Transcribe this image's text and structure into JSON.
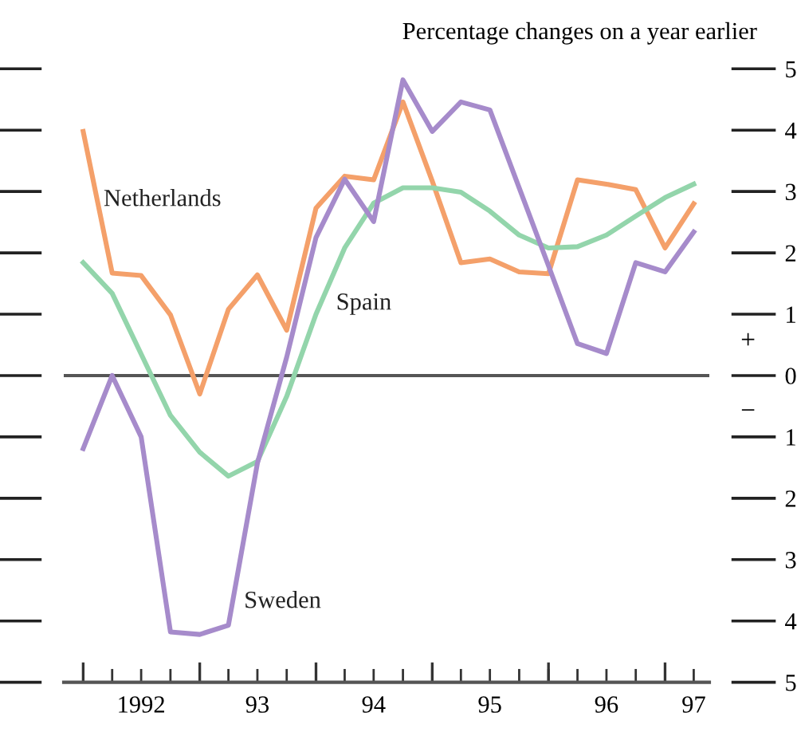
{
  "chart_data": {
    "type": "line",
    "ylabel": "Percentage changes on a year earlier",
    "x": [
      "1992-01",
      "1992-04",
      "1992-07",
      "1992-10",
      "1993-01",
      "1993-04",
      "1993-07",
      "1993-10",
      "1994-01",
      "1994-04",
      "1994-07",
      "1994-10",
      "1995-01",
      "1995-04",
      "1995-07",
      "1995-10",
      "1996-01",
      "1996-04",
      "1996-07",
      "1996-10",
      "1997-01",
      "1997-04"
    ],
    "series": [
      {
        "name": "Netherlands",
        "color": "#f4a06a",
        "values": [
          3.98,
          1.67,
          1.63,
          0.99,
          -0.3,
          1.08,
          1.64,
          0.74,
          2.73,
          3.25,
          3.19,
          4.46,
          3.17,
          1.84,
          1.9,
          1.69,
          1.66,
          3.19,
          3.12,
          3.03,
          2.08,
          2.8
        ]
      },
      {
        "name": "Spain",
        "color": "#93d5ab",
        "values": [
          1.84,
          1.34,
          0.35,
          -0.65,
          -1.25,
          -1.64,
          -1.4,
          -0.34,
          1.0,
          2.08,
          2.81,
          3.06,
          3.06,
          2.99,
          2.68,
          2.29,
          2.08,
          2.1,
          2.29,
          2.6,
          2.9,
          3.12
        ]
      },
      {
        "name": "Sweden",
        "color": "#a68bcb",
        "values": [
          -1.19,
          0.0,
          -1.0,
          -4.18,
          -4.22,
          -4.07,
          -1.43,
          0.3,
          2.25,
          3.2,
          2.51,
          4.82,
          3.98,
          4.46,
          4.33,
          3.06,
          1.79,
          0.52,
          0.36,
          1.84,
          1.69,
          2.34
        ]
      }
    ],
    "xlim": [
      "1991-11-01",
      "1997-05-20"
    ],
    "xticks": [
      {
        "value": "1992-07",
        "label": "1992"
      },
      {
        "value": "1993-07",
        "label": "93"
      },
      {
        "value": "1994-07",
        "label": "94"
      },
      {
        "value": "1995-07",
        "label": "95"
      },
      {
        "value": "1996-07",
        "label": "96"
      },
      {
        "value": "1997-04",
        "label": "97"
      },
      {
        "value": "1992-01",
        "label": null
      },
      {
        "value": "1992-04",
        "label": null
      },
      {
        "value": "1992-10",
        "label": null
      },
      {
        "value": "1993-01",
        "label": null
      },
      {
        "value": "1993-04",
        "label": null
      },
      {
        "value": "1993-10",
        "label": null
      },
      {
        "value": "1994-01",
        "label": null
      },
      {
        "value": "1994-04",
        "label": null
      },
      {
        "value": "1994-10",
        "label": null
      },
      {
        "value": "1995-01",
        "label": null
      },
      {
        "value": "1995-04",
        "label": null
      },
      {
        "value": "1995-10",
        "label": null
      },
      {
        "value": "1996-01",
        "label": null
      },
      {
        "value": "1996-04",
        "label": null
      },
      {
        "value": "1996-10",
        "label": null
      },
      {
        "value": "1997-01",
        "label": null
      }
    ],
    "ylim": [
      -5,
      5
    ],
    "yticks": [
      {
        "value": -5,
        "label": "5"
      },
      {
        "value": -4,
        "label": "4"
      },
      {
        "value": -3,
        "label": "3"
      },
      {
        "value": -2,
        "label": "2"
      },
      {
        "value": -1,
        "label": "1"
      },
      0,
      1,
      2,
      3,
      4,
      5
    ],
    "ref_lines": [
      {
        "axis": "y",
        "value": 0,
        "color": "#555555"
      }
    ],
    "annotations": [
      "+",
      "−"
    ],
    "grid": false,
    "legend": false,
    "marker": "none",
    "line_style": "solid"
  }
}
